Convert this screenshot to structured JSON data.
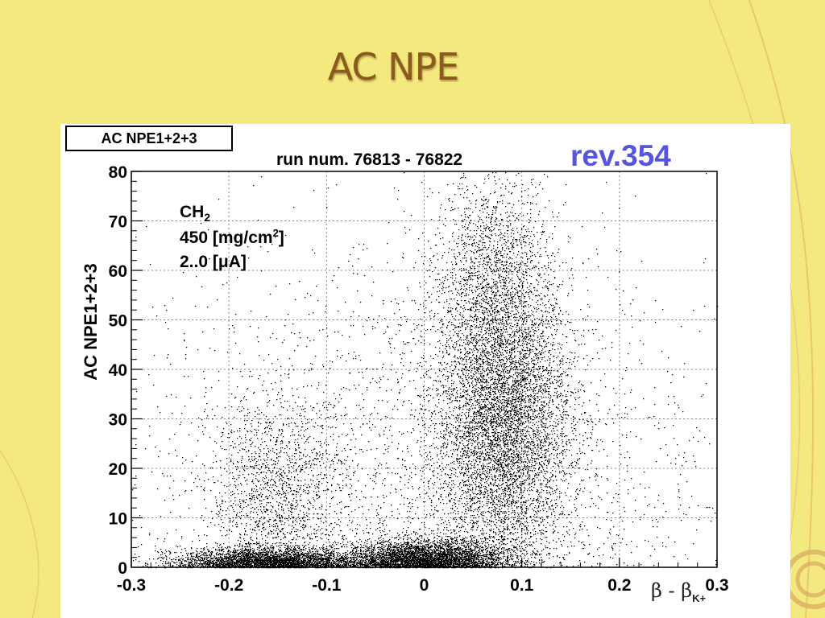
{
  "slide": {
    "title": "AC NPE"
  },
  "stat_box": "AC NPE1+2+3",
  "rev_label": "rev.354",
  "annotation": {
    "line1": "CH",
    "line1_sub": "2",
    "line2": "450 [mg/cm",
    "line2_sup": "2",
    "line2_end": "]",
    "line3": "2..0 [μA]"
  },
  "colors": {
    "background": "#f4e97e",
    "rev": "#5555dd",
    "title": "#8a5a1e"
  },
  "chart_data": {
    "type": "scatter",
    "title": "run num. 76813 - 76822",
    "xlabel": "β - β",
    "xlabel_sub": "K+",
    "ylabel": "AC NPE1+2+3",
    "xlim": [
      -0.3,
      0.3
    ],
    "ylim": [
      0,
      80
    ],
    "x_ticks": [
      -0.3,
      -0.2,
      -0.1,
      0,
      0.1,
      0.2,
      0.3
    ],
    "x_tick_labels": [
      "-0.3",
      "-0.2",
      "-0.1",
      "0",
      "0.1",
      "0.2",
      "0.3"
    ],
    "y_ticks": [
      0,
      10,
      20,
      30,
      40,
      50,
      60,
      70,
      80
    ],
    "y_tick_labels": [
      "0",
      "10",
      "20",
      "30",
      "40",
      "50",
      "60",
      "70",
      "80"
    ],
    "grid": true,
    "clusters": [
      {
        "name": "",
        "x_center": 0.08,
        "y_center": 30,
        "x_spread": 0.035,
        "y_spread": 15,
        "points": 9000
      },
      {
        "name": "",
        "x_center": 0.07,
        "y_center": 60,
        "x_spread": 0.03,
        "y_spread": 10,
        "points": 1400
      },
      {
        "name": "",
        "x_center": 0.0,
        "y_center": 1.5,
        "x_spread": 0.04,
        "y_spread": 2,
        "points": 5000
      },
      {
        "name": "",
        "x_center": -0.16,
        "y_center": 1.0,
        "x_spread": 0.045,
        "y_spread": 1.5,
        "points": 4000
      },
      {
        "name": "",
        "x_center": -0.15,
        "y_center": 15,
        "x_spread": 0.035,
        "y_spread": 10,
        "points": 1500
      },
      {
        "name": "",
        "x_center": 0.0,
        "y_center": 20,
        "x_spread": 0.15,
        "y_spread": 25,
        "points": 2500
      }
    ]
  }
}
